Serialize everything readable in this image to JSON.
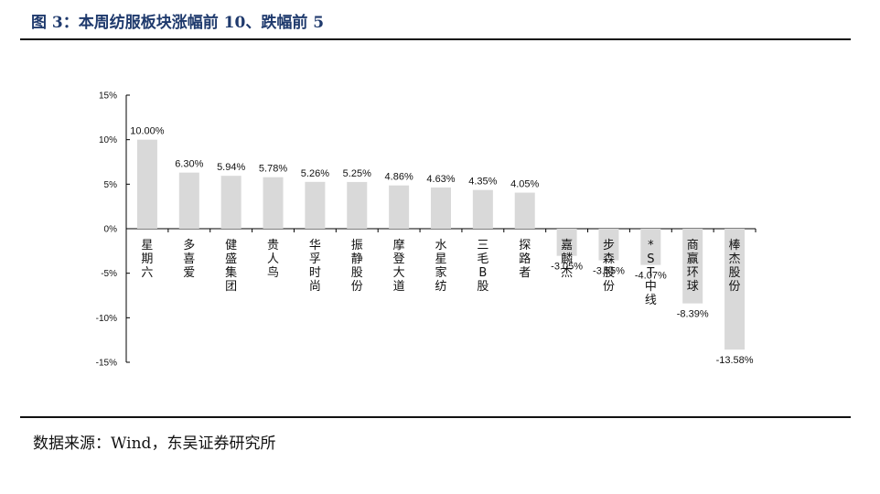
{
  "figure": {
    "title": "图 3：本周纺服板块涨幅前 10、跌幅前 5",
    "source": "数据来源：Wind，东吴证券研究所"
  },
  "colors": {
    "bar": "#d9d9d9",
    "axis": "#000000",
    "title": "#1f3a6d"
  },
  "chart_data": {
    "type": "bar",
    "categories": [
      "星期六",
      "多喜爱",
      "健盛集团",
      "贵人鸟",
      "华孚时尚",
      "振静股份",
      "摩登大道",
      "水星家纺",
      "三毛B股",
      "探路者",
      "嘉麟杰",
      "步森股份",
      "*ST中线",
      "商赢环球",
      "棒杰股份"
    ],
    "values": [
      10.0,
      6.3,
      5.94,
      5.78,
      5.26,
      5.25,
      4.86,
      4.63,
      4.35,
      4.05,
      -3.05,
      -3.55,
      -4.07,
      -8.39,
      -13.58
    ],
    "value_labels": [
      "10.00%",
      "6.30%",
      "5.94%",
      "5.78%",
      "5.26%",
      "5.25%",
      "4.86%",
      "4.63%",
      "4.35%",
      "4.05%",
      "-3.05%",
      "-3.55%",
      "-4.07%",
      "-8.39%",
      "-13.58%"
    ],
    "ylim": [
      -15,
      15
    ],
    "yticks": [
      15,
      10,
      5,
      0,
      -5,
      -10,
      -15
    ],
    "ytick_labels": [
      "15%",
      "10%",
      "5%",
      "0%",
      "-5%",
      "-10%",
      "-15%"
    ],
    "grid": false,
    "legend": "none"
  }
}
